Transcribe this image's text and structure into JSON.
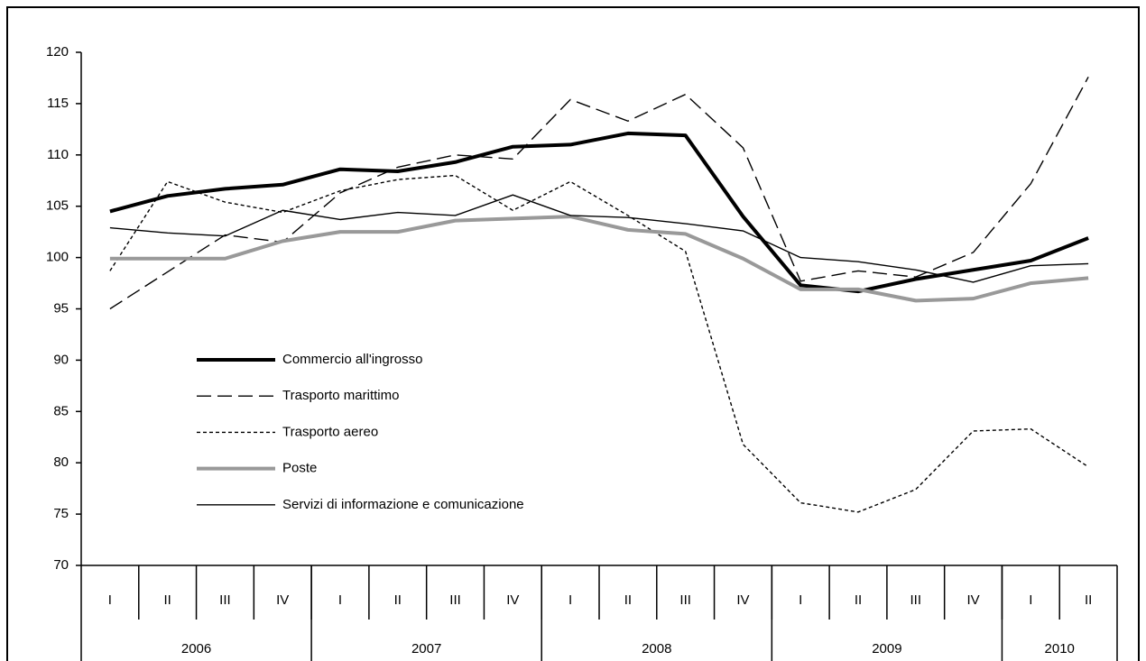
{
  "chart_data": {
    "type": "line",
    "categories": [
      "I",
      "II",
      "III",
      "IV",
      "I",
      "II",
      "III",
      "IV",
      "I",
      "II",
      "III",
      "IV",
      "I",
      "II",
      "III",
      "IV",
      "I",
      "II"
    ],
    "years": [
      "2006",
      "2007",
      "2008",
      "2009",
      "2010"
    ],
    "quarters_per_year": [
      4,
      4,
      4,
      4,
      2
    ],
    "ylim": [
      70,
      120
    ],
    "yticks": [
      70,
      75,
      80,
      85,
      90,
      95,
      100,
      105,
      110,
      115,
      120
    ],
    "grid": false,
    "series": [
      {
        "name": "Commercio all'ingrosso",
        "color": "#000000",
        "dash": "solid",
        "width": "thick",
        "values": [
          104.5,
          106,
          106.7,
          107.1,
          108.6,
          108.4,
          109.3,
          110.8,
          111,
          112.1,
          111.9,
          104,
          97.3,
          96.7,
          97.9,
          98.8,
          99.7,
          101.9
        ]
      },
      {
        "name": "Trasporto marittimo",
        "color": "#000000",
        "dash": "long",
        "width": "thin",
        "values": [
          95,
          98.6,
          102.2,
          101.5,
          106.3,
          108.8,
          110,
          109.6,
          115.4,
          113.3,
          115.9,
          110.7,
          97.7,
          98.7,
          98.1,
          100.5,
          107.2,
          117.6
        ]
      },
      {
        "name": "Trasporto aereo",
        "color": "#000000",
        "dash": "short",
        "width": "thin",
        "values": [
          98.7,
          107.4,
          105.4,
          104.4,
          106.5,
          107.6,
          108,
          104.6,
          107.4,
          104.1,
          100.6,
          81.8,
          76.1,
          75.2,
          77.4,
          83.1,
          83.3,
          79.6
        ]
      },
      {
        "name": "Poste",
        "color": "#999999",
        "dash": "solid",
        "width": "thick",
        "values": [
          99.9,
          99.9,
          99.9,
          101.6,
          102.5,
          102.5,
          103.6,
          103.8,
          104,
          102.7,
          102.3,
          99.9,
          96.9,
          96.9,
          95.8,
          96,
          97.5,
          98
        ]
      },
      {
        "name": "Servizi di informazione e comunicazione",
        "color": "#000000",
        "dash": "solid",
        "width": "thin",
        "values": [
          102.9,
          102.4,
          102.1,
          104.6,
          103.7,
          104.4,
          104.1,
          106.1,
          104.1,
          103.9,
          103.3,
          102.6,
          100,
          99.6,
          98.8,
          97.6,
          99.2,
          99.4
        ]
      }
    ]
  }
}
